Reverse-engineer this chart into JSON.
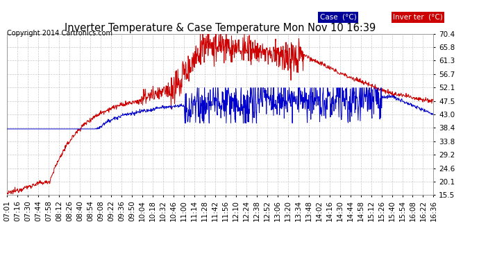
{
  "title": "Inverter Temperature & Case Temperature Mon Nov 10 16:39",
  "copyright": "Copyright 2014 Cartronics.com",
  "legend_case_label": "Case  (°C)",
  "legend_inverter_label": "Inver ter  (°C)",
  "case_color": "#cc0000",
  "inverter_color": "#0000cc",
  "legend_case_bg": "#000099",
  "legend_inverter_bg": "#cc0000",
  "bg_color": "#ffffff",
  "grid_color": "#bbbbbb",
  "ylim": [
    15.5,
    70.4
  ],
  "yticks": [
    15.5,
    20.1,
    24.6,
    29.2,
    33.8,
    38.4,
    43.0,
    47.5,
    52.1,
    56.7,
    61.3,
    65.8,
    70.4
  ],
  "xtick_labels": [
    "07:01",
    "07:16",
    "07:30",
    "07:44",
    "07:58",
    "08:12",
    "08:26",
    "08:40",
    "08:54",
    "09:08",
    "09:22",
    "09:36",
    "09:50",
    "10:04",
    "10:18",
    "10:32",
    "10:46",
    "11:00",
    "11:14",
    "11:28",
    "11:42",
    "11:56",
    "12:10",
    "12:24",
    "12:38",
    "12:52",
    "13:06",
    "13:20",
    "13:34",
    "13:48",
    "14:02",
    "14:16",
    "14:30",
    "14:44",
    "14:58",
    "15:12",
    "15:26",
    "15:40",
    "15:54",
    "16:08",
    "16:22",
    "16:36"
  ],
  "figsize": [
    6.9,
    3.75
  ],
  "dpi": 100
}
